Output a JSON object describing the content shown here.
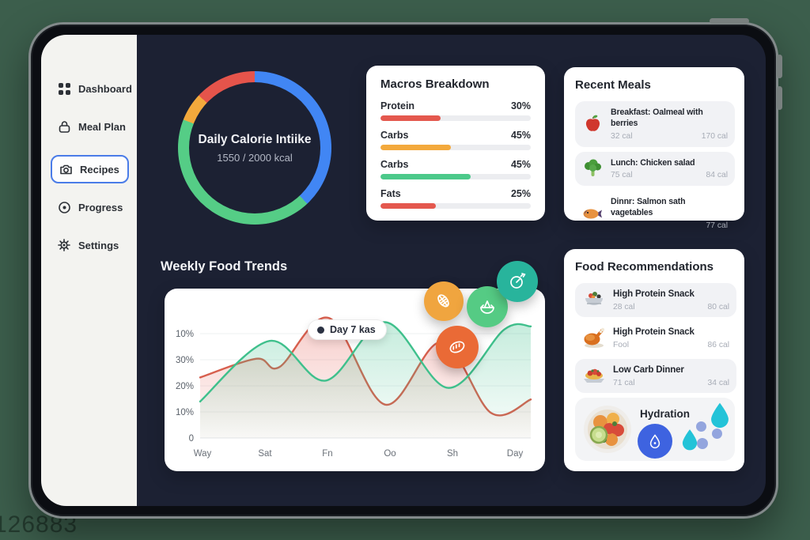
{
  "watermark": "126883",
  "sidebar": {
    "items": [
      {
        "label": "Dashboard",
        "icon": "grid-icon",
        "active": false
      },
      {
        "label": "Meal Plan",
        "icon": "lock-icon",
        "active": false
      },
      {
        "label": "Recipes",
        "icon": "camera-icon",
        "active": true
      },
      {
        "label": "Progress",
        "icon": "target-icon",
        "active": false
      },
      {
        "label": "Settings",
        "icon": "gear-icon",
        "active": false
      }
    ]
  },
  "calorie_ring": {
    "title": "Daily Calorie Intiike",
    "value": "1550 / 2000 kcal",
    "segments": [
      {
        "name": "blue",
        "color": "#4186f4",
        "pct": 38
      },
      {
        "name": "green",
        "color": "#55cd86",
        "pct": 43
      },
      {
        "name": "orange",
        "color": "#f3a93c",
        "pct": 6
      },
      {
        "name": "red",
        "color": "#e5544b",
        "pct": 13
      }
    ]
  },
  "macros": {
    "title": "Macros Breakdown",
    "rows": [
      {
        "label": "Protein",
        "pct": "30%",
        "fill": 40,
        "color": "#e4584e"
      },
      {
        "label": "Carbs",
        "pct": "45%",
        "fill": 47,
        "color": "#f3a93c"
      },
      {
        "label": "Carbs",
        "pct": "45%",
        "fill": 60,
        "color": "#4cc98a"
      },
      {
        "label": "Fats",
        "pct": "25%",
        "fill": 37,
        "color": "#e4584e"
      }
    ]
  },
  "recent_meals": {
    "title": "Recent Meals",
    "items": [
      {
        "icon": "apple-icon",
        "name": "Breakfast: Oalmeal with berries",
        "left": "32 cal",
        "right": "170 cal",
        "bg": true
      },
      {
        "icon": "broccoli-icon",
        "name": "Lunch: Chicken salad",
        "left": "75 cal",
        "right": "84 cal",
        "bg": true
      },
      {
        "icon": "fish-icon",
        "name": "Dinnr: Salmon sath vagetables",
        "left": "",
        "right": "77 cal",
        "bg": false
      }
    ]
  },
  "trends": {
    "title": "Weekly Food Trends",
    "tooltip": "Day 7 kas",
    "badges": [
      {
        "icon": "corn-icon",
        "color": "#f0a53f"
      },
      {
        "icon": "salad-icon",
        "color": "#55cb84"
      },
      {
        "icon": "stopwatch-icon",
        "color": "#28b49c"
      },
      {
        "icon": "bread-icon",
        "color": "#ea6a36"
      }
    ]
  },
  "chart_data": {
    "type": "area",
    "title": "Weekly Food Trends",
    "x_labels": [
      "Way",
      "Sat",
      "Fn",
      "Oo",
      "Sh",
      "Day"
    ],
    "y_ticks": [
      "10%",
      "30%",
      "20%",
      "10%",
      "0"
    ],
    "grid": true,
    "legend_position": "none",
    "series": [
      {
        "name": "calories-red",
        "color": "#d75f4e",
        "points": [
          [
            0,
            58
          ],
          [
            17,
            76
          ],
          [
            24,
            68
          ],
          [
            39,
            115
          ],
          [
            56,
            32
          ],
          [
            73,
            92
          ],
          [
            88,
            24
          ],
          [
            100,
            37
          ]
        ]
      },
      {
        "name": "nutrition-green",
        "color": "#3fc08c",
        "points": [
          [
            0,
            35
          ],
          [
            21,
            93
          ],
          [
            38,
            55
          ],
          [
            56,
            111
          ],
          [
            75,
            48
          ],
          [
            92,
            104
          ],
          [
            100,
            107
          ]
        ]
      }
    ],
    "y_unit": "percent-of-axis-height"
  },
  "recommendations": {
    "title": "Food Recommendations",
    "items": [
      {
        "icon": "salad-bowl-icon",
        "name": "High Protein Snack",
        "left": "28 cal",
        "right": "80 cal",
        "bg": true
      },
      {
        "icon": "roast-chicken-icon",
        "name": "High Protein Snack",
        "left": "Fool",
        "right": "86 cal",
        "bg": false
      },
      {
        "icon": "spaghetti-icon",
        "name": "Low Carb Dinner",
        "left": "71 cal",
        "right": "34 cal",
        "bg": true
      }
    ],
    "hydration": {
      "title": "Hydration",
      "icon": "water-drop-icon"
    }
  }
}
